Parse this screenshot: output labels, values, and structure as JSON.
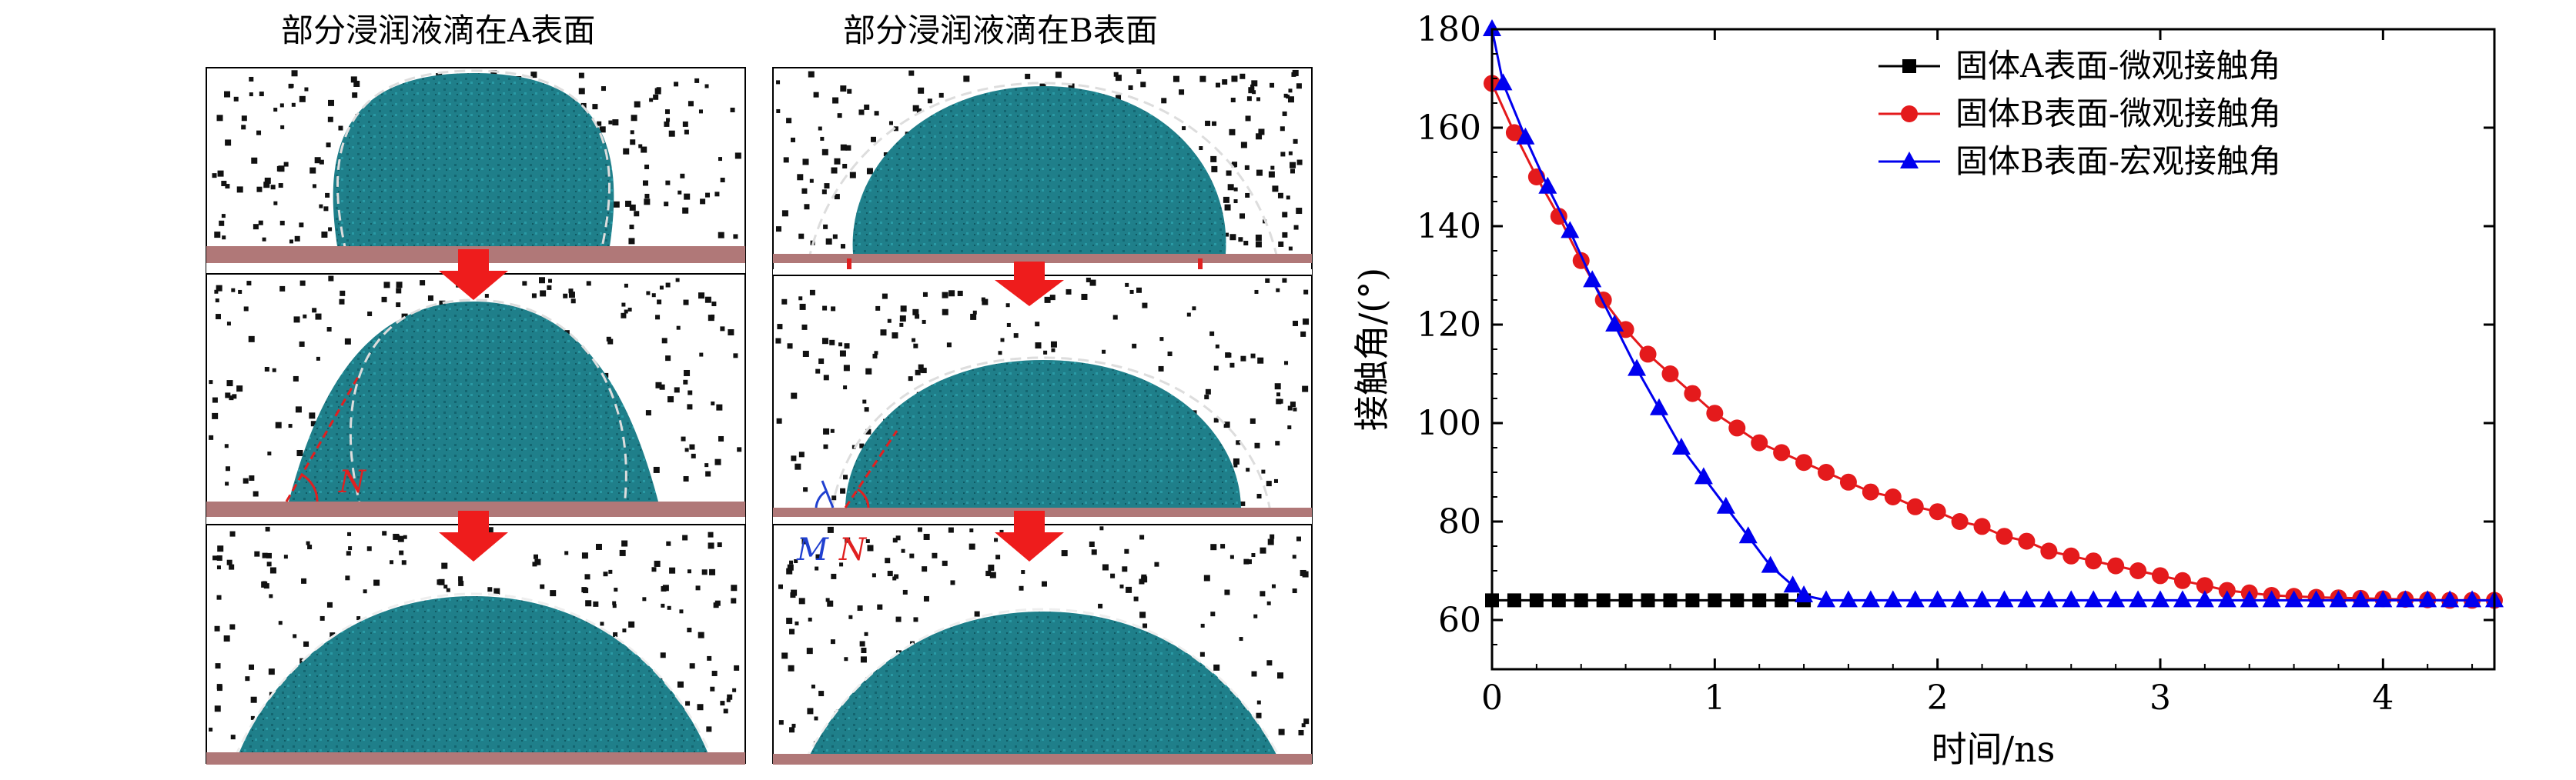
{
  "figure": {
    "left": {
      "col_a_title": "部分浸润液滴在A表面",
      "col_b_title": "部分浸润液滴在B表面",
      "annotations": {
        "n_label": "N",
        "m_label": "M",
        "n2_label": "N"
      },
      "colors": {
        "droplet": "#1f7f8a",
        "droplet_dark": "#136570",
        "substrate": "#b07878",
        "arrow": "#ee1c1c",
        "particle": "#111111",
        "micro_angle_line": "#e02020",
        "macro_angle_line": "#2040d0"
      }
    }
  },
  "chart_data": {
    "type": "line",
    "xlabel": "时间/ns",
    "ylabel": "接触角/(°)",
    "xlim": [
      0,
      4.5
    ],
    "ylim": [
      50,
      180
    ],
    "x_ticks": [
      0,
      1,
      2,
      3,
      4
    ],
    "y_ticks": [
      60,
      80,
      100,
      120,
      140,
      160,
      180
    ],
    "legend_position": "top-right",
    "grid": false,
    "series": [
      {
        "name": "固体A表面-微观接触角",
        "color": "#000000",
        "marker": "square",
        "x": [
          0.0,
          0.1,
          0.2,
          0.3,
          0.4,
          0.5,
          0.6,
          0.7,
          0.8,
          0.9,
          1.0,
          1.1,
          1.2,
          1.3,
          1.4
        ],
        "y": [
          64,
          64,
          64,
          64,
          64,
          64,
          64,
          64,
          64,
          64,
          64,
          64,
          64,
          64,
          64
        ]
      },
      {
        "name": "固体B表面-微观接触角",
        "color": "#e41a1c",
        "marker": "circle",
        "x": [
          0.0,
          0.1,
          0.2,
          0.3,
          0.4,
          0.5,
          0.6,
          0.7,
          0.8,
          0.9,
          1.0,
          1.1,
          1.2,
          1.3,
          1.4,
          1.5,
          1.6,
          1.7,
          1.8,
          1.9,
          2.0,
          2.1,
          2.2,
          2.3,
          2.4,
          2.5,
          2.6,
          2.7,
          2.8,
          2.9,
          3.0,
          3.1,
          3.2,
          3.3,
          3.4,
          3.5,
          3.6,
          3.7,
          3.8,
          3.9,
          4.0,
          4.1,
          4.2,
          4.3,
          4.4,
          4.5
        ],
        "y": [
          169,
          159,
          150,
          142,
          133,
          125,
          119,
          114,
          110,
          106,
          102,
          99,
          96,
          94,
          92,
          90,
          88,
          86,
          85,
          83,
          82,
          80,
          79,
          77,
          76,
          74,
          73,
          72,
          71,
          70,
          69,
          68,
          67,
          66,
          65.5,
          65,
          64.8,
          64.6,
          64.5,
          64.4,
          64.3,
          64.2,
          64.1,
          64,
          64,
          64
        ]
      },
      {
        "name": "固体B表面-宏观接触角",
        "color": "#0000ee",
        "marker": "triangle",
        "x": [
          0.0,
          0.05,
          0.15,
          0.25,
          0.35,
          0.45,
          0.55,
          0.65,
          0.75,
          0.85,
          0.95,
          1.05,
          1.15,
          1.25,
          1.35,
          1.4,
          1.5,
          1.6,
          1.7,
          1.8,
          1.9,
          2.0,
          2.1,
          2.2,
          2.3,
          2.4,
          2.5,
          2.6,
          2.7,
          2.8,
          2.9,
          3.0,
          3.1,
          3.2,
          3.3,
          3.4,
          3.5,
          3.6,
          3.7,
          3.8,
          3.9,
          4.0,
          4.1,
          4.2,
          4.3,
          4.4,
          4.5
        ],
        "y": [
          180,
          169,
          158,
          148,
          139,
          129,
          120,
          111,
          103,
          95,
          89,
          83,
          77,
          71,
          67,
          65,
          64,
          64,
          64,
          64,
          64,
          64,
          64,
          64,
          64,
          64,
          64,
          64,
          64,
          64,
          64,
          64,
          64,
          64,
          64,
          64,
          64,
          64,
          64,
          64,
          64,
          64,
          64,
          64,
          64,
          64,
          64
        ]
      }
    ]
  }
}
